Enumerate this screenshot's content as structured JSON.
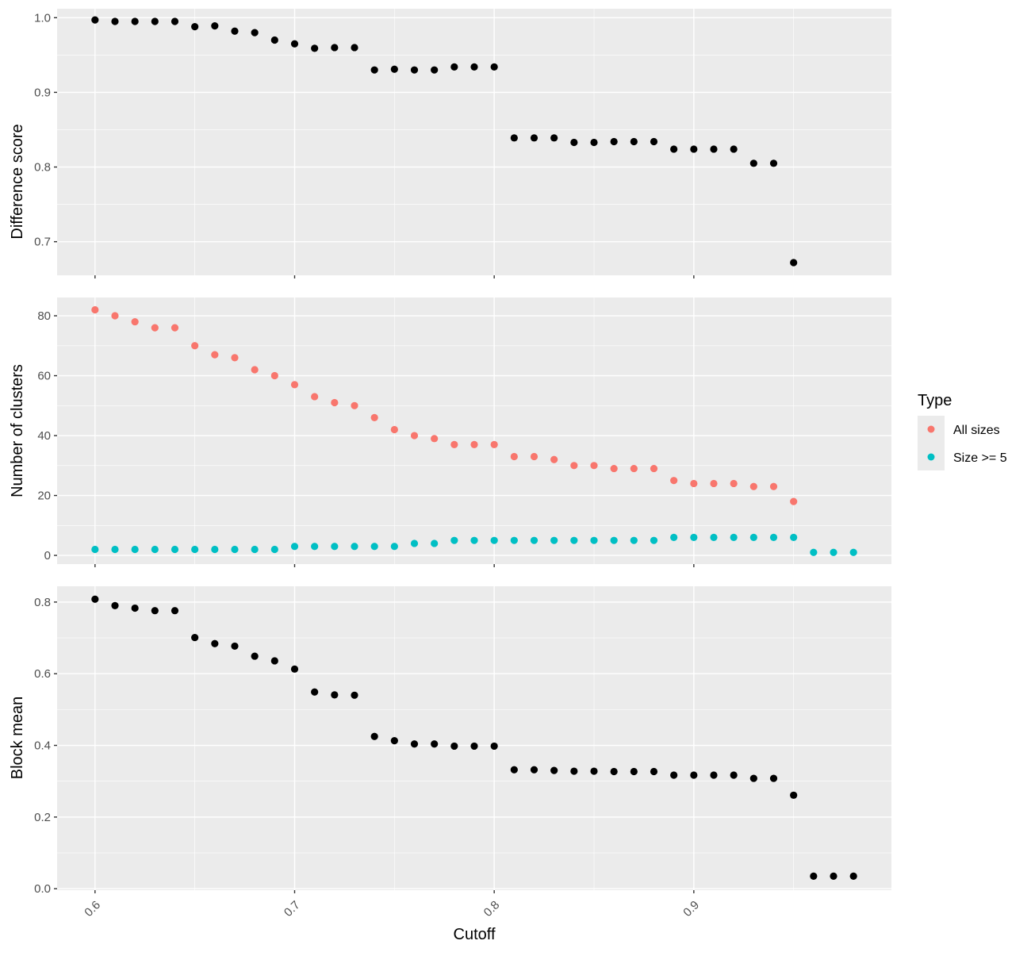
{
  "chart_data": [
    {
      "type": "scatter",
      "ylabel": "Difference score",
      "xlim": [
        0.581,
        0.999
      ],
      "ylim": [
        0.655,
        1.012
      ],
      "x_ticks": [
        0.6,
        0.7,
        0.8,
        0.9
      ],
      "y_ticks": [
        0.7,
        0.8,
        0.9,
        1.0
      ],
      "y_tick_labels": [
        "0.7",
        "0.8",
        "0.9",
        "1.0"
      ],
      "series": [
        {
          "color": "#000000",
          "x": [
            0.6,
            0.61,
            0.62,
            0.63,
            0.64,
            0.65,
            0.66,
            0.67,
            0.68,
            0.69,
            0.7,
            0.71,
            0.72,
            0.73,
            0.74,
            0.75,
            0.76,
            0.77,
            0.78,
            0.79,
            0.8,
            0.81,
            0.82,
            0.83,
            0.84,
            0.85,
            0.86,
            0.87,
            0.88,
            0.89,
            0.9,
            0.91,
            0.92,
            0.93,
            0.94,
            0.95
          ],
          "y": [
            0.997,
            0.995,
            0.995,
            0.995,
            0.995,
            0.988,
            0.989,
            0.982,
            0.98,
            0.97,
            0.965,
            0.959,
            0.96,
            0.96,
            0.93,
            0.931,
            0.93,
            0.93,
            0.934,
            0.934,
            0.934,
            0.839,
            0.839,
            0.839,
            0.833,
            0.833,
            0.834,
            0.834,
            0.834,
            0.824,
            0.824,
            0.824,
            0.824,
            0.805,
            0.805,
            0.672
          ]
        }
      ]
    },
    {
      "type": "scatter",
      "ylabel": "Number of clusters",
      "xlim": [
        0.581,
        0.999
      ],
      "ylim": [
        -2.9,
        86.1
      ],
      "x_ticks": [
        0.6,
        0.7,
        0.8,
        0.9
      ],
      "y_ticks": [
        0,
        20,
        40,
        60,
        80
      ],
      "y_tick_labels": [
        "0",
        "20",
        "40",
        "60",
        "80"
      ],
      "series": [
        {
          "name": "All sizes",
          "color": "#F8766D",
          "x": [
            0.6,
            0.61,
            0.62,
            0.63,
            0.64,
            0.65,
            0.66,
            0.67,
            0.68,
            0.69,
            0.7,
            0.71,
            0.72,
            0.73,
            0.74,
            0.75,
            0.76,
            0.77,
            0.78,
            0.79,
            0.8,
            0.81,
            0.82,
            0.83,
            0.84,
            0.85,
            0.86,
            0.87,
            0.88,
            0.89,
            0.9,
            0.91,
            0.92,
            0.93,
            0.94,
            0.95
          ],
          "y": [
            82,
            80,
            78,
            76,
            76,
            70,
            67,
            66,
            62,
            60,
            57,
            53,
            51,
            50,
            46,
            42,
            40,
            39,
            37,
            37,
            37,
            33,
            33,
            32,
            30,
            30,
            29,
            29,
            29,
            25,
            24,
            24,
            24,
            23,
            23,
            18
          ]
        },
        {
          "name": "Size >= 5",
          "color": "#00BFC4",
          "x": [
            0.6,
            0.61,
            0.62,
            0.63,
            0.64,
            0.65,
            0.66,
            0.67,
            0.68,
            0.69,
            0.7,
            0.71,
            0.72,
            0.73,
            0.74,
            0.75,
            0.76,
            0.77,
            0.78,
            0.79,
            0.8,
            0.81,
            0.82,
            0.83,
            0.84,
            0.85,
            0.86,
            0.87,
            0.88,
            0.89,
            0.9,
            0.91,
            0.92,
            0.93,
            0.94,
            0.95,
            0.96,
            0.97,
            0.98
          ],
          "y": [
            2,
            2,
            2,
            2,
            2,
            2,
            2,
            2,
            2,
            2,
            3,
            3,
            3,
            3,
            3,
            3,
            4,
            4,
            5,
            5,
            5,
            5,
            5,
            5,
            5,
            5,
            5,
            5,
            5,
            6,
            6,
            6,
            6,
            6,
            6,
            6,
            1,
            1,
            1
          ]
        }
      ]
    },
    {
      "type": "scatter",
      "ylabel": "Block mean",
      "xlabel": "Cutoff",
      "xlim": [
        0.581,
        0.999
      ],
      "ylim": [
        -0.004,
        0.844
      ],
      "x_ticks": [
        0.6,
        0.7,
        0.8,
        0.9
      ],
      "x_tick_labels": [
        "0.6",
        "0.7",
        "0.8",
        "0.9"
      ],
      "y_ticks": [
        0.0,
        0.2,
        0.4,
        0.6,
        0.8
      ],
      "y_tick_labels": [
        "0.0",
        "0.2",
        "0.4",
        "0.6",
        "0.8"
      ],
      "series": [
        {
          "color": "#000000",
          "x": [
            0.6,
            0.61,
            0.62,
            0.63,
            0.64,
            0.65,
            0.66,
            0.67,
            0.68,
            0.69,
            0.7,
            0.71,
            0.72,
            0.73,
            0.74,
            0.75,
            0.76,
            0.77,
            0.78,
            0.79,
            0.8,
            0.81,
            0.82,
            0.83,
            0.84,
            0.85,
            0.86,
            0.87,
            0.88,
            0.89,
            0.9,
            0.91,
            0.92,
            0.93,
            0.94,
            0.95,
            0.96,
            0.97,
            0.98
          ],
          "y": [
            0.808,
            0.79,
            0.783,
            0.776,
            0.776,
            0.701,
            0.684,
            0.677,
            0.649,
            0.636,
            0.613,
            0.549,
            0.541,
            0.54,
            0.425,
            0.413,
            0.404,
            0.404,
            0.398,
            0.398,
            0.398,
            0.332,
            0.332,
            0.33,
            0.328,
            0.328,
            0.327,
            0.327,
            0.327,
            0.317,
            0.317,
            0.317,
            0.317,
            0.308,
            0.308,
            0.261,
            0.035,
            0.035,
            0.035
          ]
        }
      ]
    }
  ],
  "legend": {
    "title": "Type",
    "items": [
      {
        "label": "All sizes",
        "color": "#F8766D"
      },
      {
        "label": "Size >= 5",
        "color": "#00BFC4"
      }
    ]
  },
  "colors": {
    "panel_background": "#EBEBEB",
    "grid_major": "#FFFFFF",
    "axis_text": "#4D4D4D",
    "tick_mark": "#333333"
  }
}
